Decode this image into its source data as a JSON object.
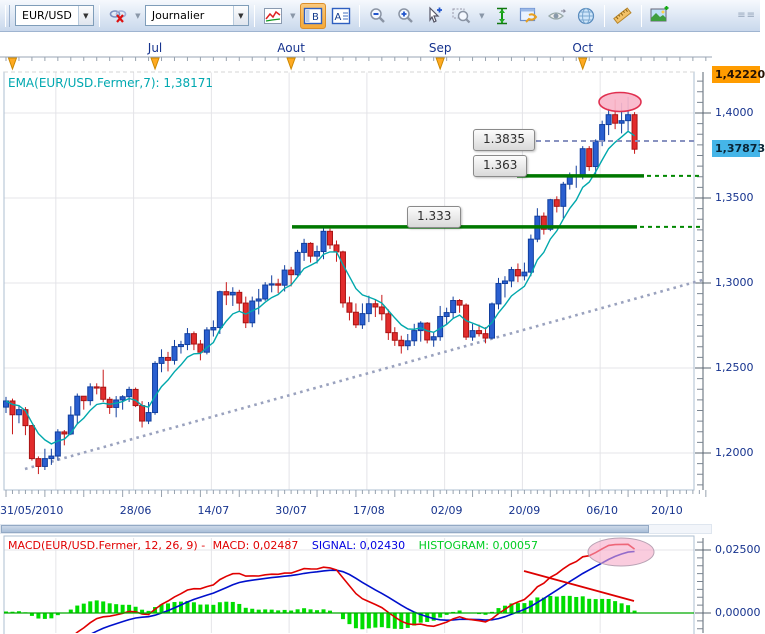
{
  "toolbar": {
    "symbol_select": {
      "value": "EUR/USD"
    },
    "period_select": {
      "value": "Journalier"
    }
  },
  "colors": {
    "bull": "#2a5fd0",
    "bull_edge": "#123f9e",
    "bear": "#e22c2c",
    "bear_edge": "#a81414",
    "ema_line": "#00a8ac",
    "level_green": "#007800",
    "level_green_dash": "#008800",
    "resistance_dash": "#8892c0",
    "trend_dots": "#9aa2be",
    "macd_line": "#e00000",
    "signal_line": "#0010cc",
    "histogram": "#00dd00",
    "zero_line": "#00aa00",
    "grid": "#e4e4e8",
    "axis_text": "#16338e",
    "tag_high_bg": "#ff9c00",
    "tag_current_bg": "#45b5e8",
    "ellipse_fill": "#f9b6ca",
    "ellipse_edge": "#e03050"
  },
  "chart_data": {
    "type": "candlestick",
    "symbol": "EUR/USD",
    "timeframe": "Journalier",
    "ema_label": "EMA(EUR/USD.Fermer,7): 1,38171",
    "ema_period": 7,
    "months": [
      {
        "label": "Jul",
        "i": 23
      },
      {
        "label": "Aout",
        "i": 44
      },
      {
        "label": "Sep",
        "i": 67
      },
      {
        "label": "Oct",
        "i": 89
      }
    ],
    "extra_month_arrow_i": 1,
    "x_ticks": [
      {
        "label": "31/05/2010",
        "i": 0
      },
      {
        "label": "28/06",
        "i": 20
      },
      {
        "label": "14/07",
        "i": 32
      },
      {
        "label": "30/07",
        "i": 44
      },
      {
        "label": "17/08",
        "i": 56
      },
      {
        "label": "02/09",
        "i": 68
      },
      {
        "label": "20/09",
        "i": 80
      },
      {
        "label": "06/10",
        "i": 92
      },
      {
        "label": "20/10",
        "i": 102
      }
    ],
    "y_ticks": [
      {
        "label": "1,4000",
        "v": 1.4
      },
      {
        "label": "1,3500",
        "v": 1.35
      },
      {
        "label": "1,3000",
        "v": 1.3
      },
      {
        "label": "1,2500",
        "v": 1.25
      },
      {
        "label": "1,2000",
        "v": 1.2
      }
    ],
    "grid_i": [
      8,
      20,
      32,
      44,
      56,
      68,
      80,
      92
    ],
    "price_tags": [
      {
        "label": "1,42220",
        "v": 1.4222,
        "bg": "#ff9c00",
        "fg": "#241102"
      },
      {
        "label": "1,37873",
        "v": 1.37873,
        "bg": "#45b5e8",
        "fg": "#0a2535"
      }
    ],
    "levels": [
      {
        "label": "1.3835",
        "value": 1.3835,
        "style": "dashed",
        "box_x": 473,
        "line": [
          527,
          697
        ]
      },
      {
        "label": "1.363",
        "value": 1.363,
        "style": "solid",
        "box_x": 473,
        "line": [
          517,
          644
        ],
        "dash_ext": [
          647,
          703
        ]
      },
      {
        "label": "1.333",
        "value": 1.333,
        "style": "solid",
        "box_x": 407,
        "line": [
          292,
          637
        ],
        "dash_ext": [
          640,
          703
        ]
      }
    ],
    "trendline_dotted": {
      "x1": 25,
      "y1": 469,
      "x2": 706,
      "y2": 279
    },
    "ellipses": [
      {
        "cx": 620,
        "cy": 102,
        "rx": 21,
        "ry": 9.5,
        "panel": "main"
      },
      {
        "cx": 621,
        "cy": 552,
        "rx": 33,
        "ry": 14,
        "panel": "macd"
      }
    ],
    "candles": [
      [
        1.227,
        1.233,
        1.2235,
        1.2306
      ],
      [
        1.2306,
        1.232,
        1.211,
        1.2225
      ],
      [
        1.2225,
        1.228,
        1.2175,
        1.2255
      ],
      [
        1.2255,
        1.227,
        1.2105,
        1.2161
      ],
      [
        1.2161,
        1.2165,
        1.1955,
        1.1967
      ],
      [
        1.1967,
        1.198,
        1.1876,
        1.1921
      ],
      [
        1.1921,
        1.2025,
        1.19,
        1.1967
      ],
      [
        1.1967,
        1.2025,
        1.193,
        1.1982
      ],
      [
        1.1982,
        1.214,
        1.1955,
        1.2124
      ],
      [
        1.2124,
        1.2135,
        1.2045,
        1.2112
      ],
      [
        1.2112,
        1.2275,
        1.2105,
        1.2223
      ],
      [
        1.2223,
        1.235,
        1.217,
        1.2334
      ],
      [
        1.2334,
        1.2335,
        1.2255,
        1.2308
      ],
      [
        1.2308,
        1.241,
        1.228,
        1.2389
      ],
      [
        1.2389,
        1.241,
        1.2345,
        1.2387
      ],
      [
        1.2387,
        1.249,
        1.23,
        1.2316
      ],
      [
        1.2316,
        1.233,
        1.223,
        1.2268
      ],
      [
        1.2268,
        1.2335,
        1.221,
        1.2312
      ],
      [
        1.2312,
        1.234,
        1.2255,
        1.2331
      ],
      [
        1.2331,
        1.239,
        1.23,
        1.2374
      ],
      [
        1.2374,
        1.2385,
        1.227,
        1.2279
      ],
      [
        1.2279,
        1.2305,
        1.215,
        1.2188
      ],
      [
        1.2188,
        1.23,
        1.217,
        1.2238
      ],
      [
        1.2238,
        1.254,
        1.2225,
        1.2527
      ],
      [
        1.2527,
        1.261,
        1.2475,
        1.2562
      ],
      [
        1.2562,
        1.2595,
        1.248,
        1.2545
      ],
      [
        1.2545,
        1.2665,
        1.252,
        1.2626
      ],
      [
        1.2626,
        1.266,
        1.2585,
        1.2638
      ],
      [
        1.2638,
        1.2735,
        1.2605,
        1.2702
      ],
      [
        1.2702,
        1.2715,
        1.2605,
        1.2641
      ],
      [
        1.2641,
        1.2665,
        1.2545,
        1.2593
      ],
      [
        1.2593,
        1.274,
        1.258,
        1.2724
      ],
      [
        1.2724,
        1.278,
        1.2685,
        1.2738
      ],
      [
        1.2738,
        1.2955,
        1.27,
        1.2949
      ],
      [
        1.2949,
        1.3005,
        1.287,
        1.293
      ],
      [
        1.293,
        1.2975,
        1.2865,
        1.2945
      ],
      [
        1.2945,
        1.296,
        1.283,
        1.2882
      ],
      [
        1.2882,
        1.292,
        1.2735,
        1.2766
      ],
      [
        1.2766,
        1.292,
        1.274,
        1.2894
      ],
      [
        1.2894,
        1.2965,
        1.2815,
        1.2906
      ],
      [
        1.2906,
        1.3005,
        1.2895,
        1.2988
      ],
      [
        1.2988,
        1.3045,
        1.2945,
        1.2995
      ],
      [
        1.2995,
        1.3025,
        1.294,
        1.2987
      ],
      [
        1.2987,
        1.3105,
        1.295,
        1.3076
      ],
      [
        1.3076,
        1.3095,
        1.298,
        1.3049
      ],
      [
        1.3049,
        1.3195,
        1.304,
        1.318
      ],
      [
        1.318,
        1.326,
        1.313,
        1.3233
      ],
      [
        1.3233,
        1.324,
        1.312,
        1.3158
      ],
      [
        1.3158,
        1.322,
        1.3115,
        1.3185
      ],
      [
        1.3185,
        1.3335,
        1.314,
        1.3304
      ],
      [
        1.3304,
        1.332,
        1.32,
        1.3224
      ],
      [
        1.3224,
        1.325,
        1.3125,
        1.3183
      ],
      [
        1.3183,
        1.319,
        1.2855,
        1.2883
      ],
      [
        1.2883,
        1.292,
        1.278,
        1.2828
      ],
      [
        1.2828,
        1.288,
        1.2735,
        1.2754
      ],
      [
        1.2754,
        1.288,
        1.273,
        1.282
      ],
      [
        1.282,
        1.2925,
        1.277,
        1.2878
      ],
      [
        1.2878,
        1.2905,
        1.28,
        1.2859
      ],
      [
        1.2859,
        1.293,
        1.278,
        1.2819
      ],
      [
        1.2819,
        1.2845,
        1.2665,
        1.2708
      ],
      [
        1.2708,
        1.274,
        1.263,
        1.2663
      ],
      [
        1.2663,
        1.269,
        1.2585,
        1.2631
      ],
      [
        1.2631,
        1.27,
        1.2605,
        1.266
      ],
      [
        1.266,
        1.276,
        1.263,
        1.272
      ],
      [
        1.272,
        1.2775,
        1.2655,
        1.2764
      ],
      [
        1.2764,
        1.277,
        1.2645,
        1.2665
      ],
      [
        1.2665,
        1.271,
        1.2625,
        1.2684
      ],
      [
        1.2684,
        1.2865,
        1.266,
        1.2803
      ],
      [
        1.2803,
        1.2855,
        1.2755,
        1.2826
      ],
      [
        1.2826,
        1.292,
        1.279,
        1.2897
      ],
      [
        1.2897,
        1.2905,
        1.2825,
        1.287
      ],
      [
        1.287,
        1.288,
        1.2665,
        1.2682
      ],
      [
        1.2682,
        1.276,
        1.266,
        1.272
      ],
      [
        1.272,
        1.2755,
        1.2685,
        1.2702
      ],
      [
        1.2702,
        1.274,
        1.2645,
        1.2676
      ],
      [
        1.2676,
        1.2885,
        1.267,
        1.2877
      ],
      [
        1.2877,
        1.303,
        1.2845,
        1.2997
      ],
      [
        1.2997,
        1.304,
        1.2915,
        1.3012
      ],
      [
        1.3012,
        1.3095,
        1.2975,
        1.3079
      ],
      [
        1.3079,
        1.3115,
        1.3005,
        1.3042
      ],
      [
        1.3042,
        1.312,
        1.3015,
        1.3064
      ],
      [
        1.3064,
        1.3285,
        1.304,
        1.3258
      ],
      [
        1.3258,
        1.344,
        1.324,
        1.3393
      ],
      [
        1.3393,
        1.3415,
        1.3285,
        1.3316
      ],
      [
        1.3316,
        1.3495,
        1.3305,
        1.349
      ],
      [
        1.349,
        1.351,
        1.3415,
        1.3451
      ],
      [
        1.3451,
        1.3595,
        1.338,
        1.3581
      ],
      [
        1.3581,
        1.365,
        1.355,
        1.3631
      ],
      [
        1.3631,
        1.369,
        1.356,
        1.3633
      ],
      [
        1.3633,
        1.3805,
        1.361,
        1.379
      ],
      [
        1.379,
        1.3805,
        1.366,
        1.3685
      ],
      [
        1.3685,
        1.3845,
        1.364,
        1.3835
      ],
      [
        1.3835,
        1.3955,
        1.3805,
        1.3932
      ],
      [
        1.3932,
        1.403,
        1.387,
        1.399
      ],
      [
        1.399,
        1.408,
        1.3905,
        1.394
      ],
      [
        1.394,
        1.406,
        1.388,
        1.3955
      ],
      [
        1.3955,
        1.4095,
        1.3895,
        1.399
      ],
      [
        1.399,
        1.4005,
        1.376,
        1.3787
      ]
    ],
    "macd": {
      "params": [
        12,
        26,
        9
      ],
      "label_prefix": "MACD(EUR/USD.Fermer, 12, 26, 9) - ",
      "macd_label": "MACD: 0,02487",
      "signal_label": "SIGNAL: 0,02430",
      "hist_label": "HISTOGRAM: 0,00057",
      "y_ticks": [
        {
          "label": "0,02500",
          "v": 0.025
        },
        {
          "label": "0,00000",
          "v": 0
        }
      ],
      "trend_line": {
        "x1": 524,
        "y1": 571,
        "x2": 634,
        "y2": 601
      }
    }
  }
}
